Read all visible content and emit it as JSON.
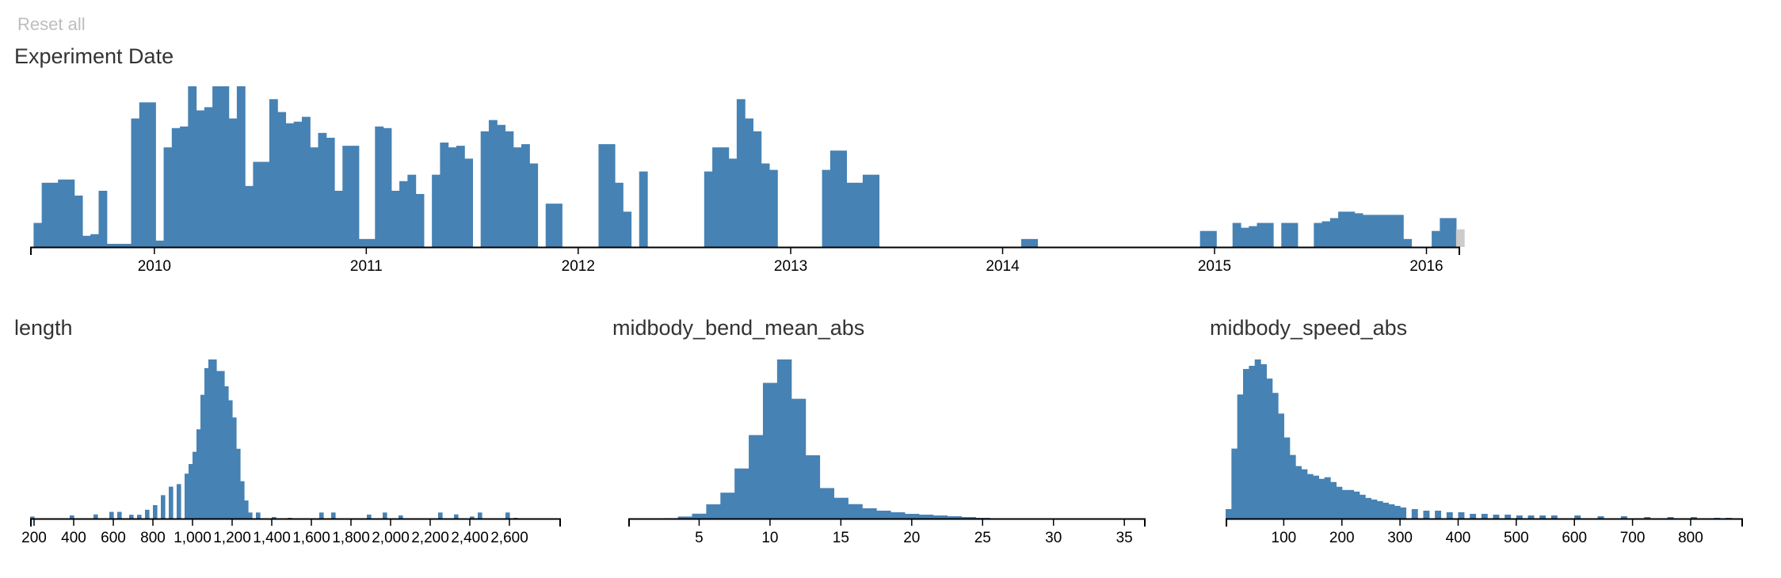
{
  "reset_label": "Reset all",
  "colors": {
    "bar": "#4682b4",
    "filtered": "#cccccc",
    "axis": "#000000"
  },
  "chart_data": [
    {
      "type": "bar",
      "title": "Experiment Date",
      "x_axis": "date",
      "xlim": [
        "2009-06-01",
        "2016-02-28"
      ],
      "tick_labels": [
        "2010",
        "2011",
        "2012",
        "2013",
        "2014",
        "2015",
        "2016"
      ],
      "x": [
        "2009-06-07",
        "2009-06-21",
        "2009-07-05",
        "2009-07-19",
        "2009-08-02",
        "2009-08-16",
        "2009-08-30",
        "2009-09-13",
        "2009-09-27",
        "2009-10-11",
        "2009-10-25",
        "2009-11-08",
        "2009-11-22",
        "2009-12-06",
        "2009-12-20",
        "2010-01-03",
        "2010-01-17",
        "2010-01-31",
        "2010-02-14",
        "2010-02-28",
        "2010-03-14",
        "2010-03-28",
        "2010-04-11",
        "2010-04-25",
        "2010-05-09",
        "2010-05-23",
        "2010-06-06",
        "2010-06-20",
        "2010-07-04",
        "2010-07-18",
        "2010-08-01",
        "2010-08-15",
        "2010-08-29",
        "2010-09-12",
        "2010-09-26",
        "2010-10-10",
        "2010-10-24",
        "2010-11-07",
        "2010-11-21",
        "2010-12-05",
        "2010-12-19",
        "2011-01-02",
        "2011-01-16",
        "2011-01-30",
        "2011-02-13",
        "2011-02-27",
        "2011-03-13",
        "2011-03-27",
        "2011-04-10",
        "2011-04-24",
        "2011-05-08",
        "2011-05-22",
        "2011-06-05",
        "2011-06-19",
        "2011-07-03",
        "2011-07-17",
        "2011-07-31",
        "2011-08-14",
        "2011-08-28",
        "2011-09-11",
        "2011-09-25",
        "2011-10-09",
        "2011-10-23",
        "2011-11-06",
        "2011-11-20",
        "2012-02-05",
        "2012-02-19",
        "2012-03-04",
        "2012-03-18",
        "2012-04-01",
        "2012-04-15",
        "2012-08-05",
        "2012-08-19",
        "2012-09-02",
        "2012-09-16",
        "2012-09-30",
        "2012-10-14",
        "2012-10-28",
        "2012-11-11",
        "2012-11-25",
        "2013-02-24",
        "2013-03-10",
        "2013-03-24",
        "2013-04-07",
        "2013-04-21",
        "2013-05-05",
        "2013-05-19",
        "2014-02-02",
        "2014-02-16",
        "2014-12-07",
        "2014-12-21",
        "2015-02-01",
        "2015-02-15",
        "2015-03-01",
        "2015-03-15",
        "2015-03-29",
        "2015-04-26",
        "2015-05-10",
        "2015-06-21",
        "2015-07-05",
        "2015-07-19",
        "2015-08-02",
        "2015-08-16",
        "2015-08-30",
        "2015-09-13",
        "2015-09-27",
        "2015-10-11",
        "2015-10-25",
        "2015-11-08",
        "2015-11-22",
        "2016-01-10",
        "2016-01-24",
        "2016-02-07"
      ],
      "values": [
        15,
        40,
        40,
        42,
        42,
        32,
        7,
        8,
        35,
        2,
        2,
        2,
        80,
        90,
        90,
        4,
        62,
        74,
        75,
        100,
        85,
        87,
        100,
        100,
        80,
        100,
        38,
        53,
        53,
        92,
        84,
        77,
        78,
        81,
        62,
        71,
        68,
        35,
        63,
        63,
        5,
        5,
        75,
        74,
        35,
        41,
        45,
        33,
        0,
        45,
        65,
        62,
        63,
        55,
        0,
        72,
        79,
        76,
        72,
        62,
        64,
        52,
        0,
        27,
        27,
        64,
        64,
        40,
        22,
        0,
        47,
        47,
        62,
        62,
        55,
        92,
        80,
        72,
        52,
        48,
        48,
        60,
        60,
        40,
        40,
        45,
        45,
        5,
        5,
        10,
        10,
        15,
        12,
        13,
        15,
        15,
        15,
        15,
        15,
        16,
        18,
        22,
        22,
        21,
        20,
        20,
        20,
        20,
        20,
        5,
        10,
        18,
        18
      ],
      "filtered_x": [
        "2016-02-21"
      ],
      "filtered_values": [
        11
      ]
    },
    {
      "type": "bar",
      "title": "length",
      "xlim": [
        180,
        2860
      ],
      "tick_labels": [
        "200",
        "400",
        "600",
        "800",
        "1,000",
        "1,200",
        "1,400",
        "1,600",
        "1,800",
        "2,000",
        "2,200",
        "2,400",
        "2,600"
      ],
      "x": [
        180,
        380,
        500,
        580,
        620,
        680,
        720,
        760,
        800,
        840,
        880,
        920,
        960,
        980,
        1000,
        1020,
        1040,
        1060,
        1080,
        1100,
        1120,
        1140,
        1160,
        1180,
        1200,
        1220,
        1240,
        1260,
        1280,
        1320,
        1400,
        1480,
        1640,
        1700,
        1880,
        1960,
        2040,
        2240,
        2320,
        2400,
        2440,
        2580,
        2620
      ],
      "values": [
        1.3,
        2,
        2.6,
        4.2,
        4.2,
        2.4,
        2.4,
        5.5,
        8.4,
        14.6,
        19.9,
        21.5,
        28,
        34,
        41.6,
        55.6,
        77.1,
        93.7,
        99.1,
        99.1,
        91.9,
        91.9,
        82.4,
        73.7,
        63,
        43.5,
        23.3,
        11.3,
        3.8,
        3.8,
        1,
        0.5,
        3.8,
        3.8,
        2.5,
        3.8,
        2,
        3.8,
        2.6,
        1.3,
        3.8,
        3.8,
        0.5
      ]
    },
    {
      "type": "bar",
      "title": "midbody_bend_mean_abs",
      "xlim": [
        0,
        36.5
      ],
      "tick_labels": [
        "5",
        "10",
        "15",
        "20",
        "25",
        "30",
        "35"
      ],
      "x": [
        2.5,
        3.5,
        4.5,
        5.5,
        6.5,
        7.5,
        8.5,
        9.5,
        10.5,
        11.5,
        12.5,
        13.5,
        14.5,
        15.5,
        16.5,
        17.5,
        18.5,
        19.5,
        20.5,
        21.5,
        22.5,
        23.5,
        24.5
      ],
      "values": [
        0.3,
        1.3,
        3.1,
        9,
        16.3,
        31.5,
        52.5,
        85.3,
        100,
        75.3,
        39.8,
        19.2,
        13.1,
        9.1,
        6.5,
        5,
        4,
        3,
        2.5,
        2,
        1.5,
        1,
        0.5
      ]
    },
    {
      "type": "bar",
      "title": "midbody_speed_abs",
      "xlim": [
        0,
        890
      ],
      "tick_labels": [
        "100",
        "200",
        "300",
        "400",
        "500",
        "600",
        "700",
        "800"
      ],
      "x": [
        0,
        10,
        20,
        30,
        40,
        50,
        60,
        70,
        80,
        90,
        100,
        110,
        120,
        130,
        140,
        150,
        160,
        170,
        180,
        190,
        200,
        210,
        220,
        230,
        240,
        250,
        260,
        270,
        280,
        290,
        300,
        320,
        340,
        360,
        380,
        400,
        420,
        440,
        460,
        480,
        500,
        520,
        540,
        560,
        600,
        640,
        680,
        720,
        760,
        800,
        840,
        860
      ],
      "values": [
        6,
        44,
        78,
        94,
        96,
        100,
        97,
        88,
        79,
        66,
        51,
        40,
        33,
        31,
        28,
        27,
        25,
        26,
        23,
        20,
        18,
        18,
        17,
        15,
        13,
        12,
        11,
        10,
        9,
        8,
        7,
        6,
        5,
        5,
        4,
        4,
        3,
        3,
        2.5,
        2.5,
        2,
        2,
        2,
        2,
        2,
        1.5,
        1.5,
        1,
        1,
        1,
        0.5,
        0.5
      ]
    }
  ]
}
